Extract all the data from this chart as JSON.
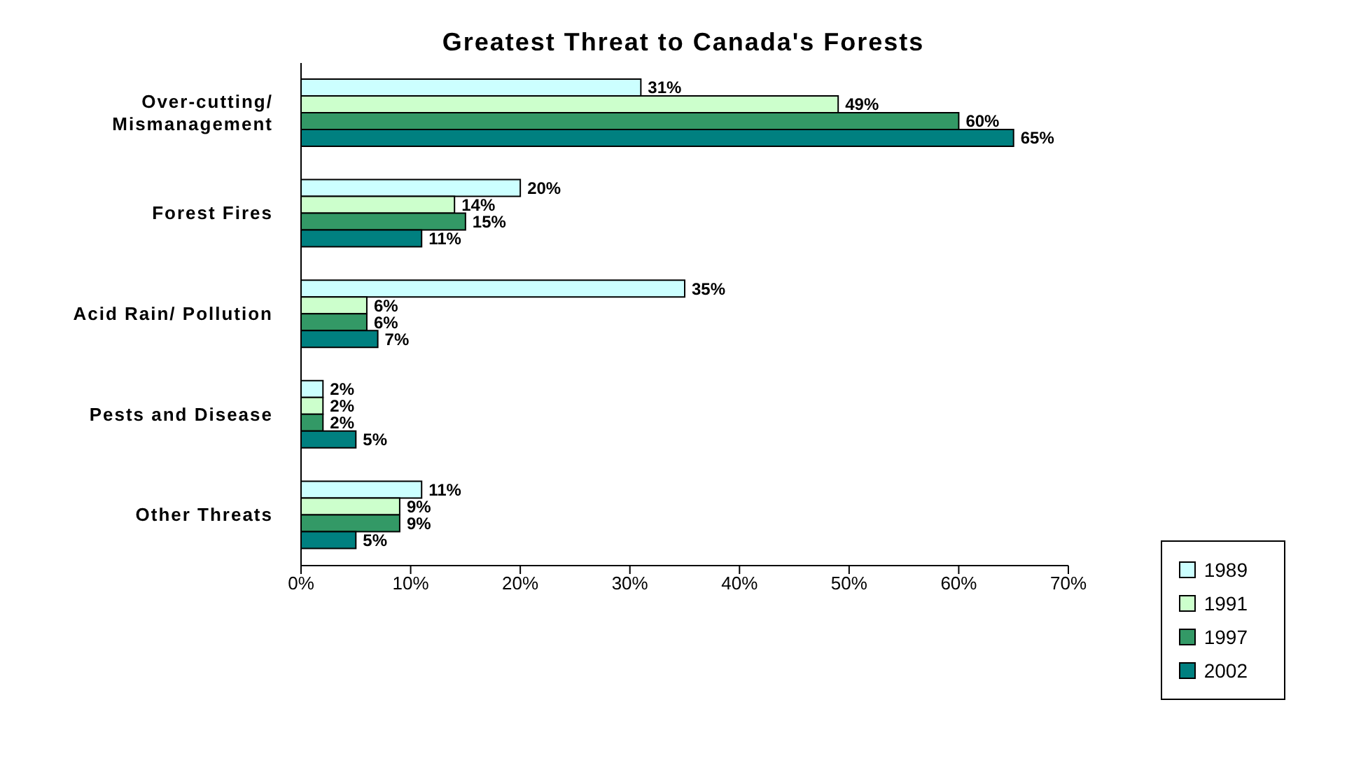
{
  "chart_data": {
    "type": "bar",
    "orientation": "horizontal",
    "title": "Greatest Threat to Canada's Forests",
    "categories": [
      "Over-cutting/\nMismanagement",
      "Forest Fires",
      "Acid Rain/ Pollution",
      "Pests and Disease",
      "Other Threats"
    ],
    "series": [
      {
        "name": "1989",
        "color": "#ccffff",
        "values": [
          31,
          20,
          35,
          2,
          11
        ],
        "value_labels": [
          "31%",
          "20%",
          "35%",
          "2%",
          "11%"
        ]
      },
      {
        "name": "1991",
        "color": "#ccffcc",
        "values": [
          49,
          14,
          6,
          2,
          9
        ],
        "value_labels": [
          "49%",
          "14%",
          "6%",
          "2%",
          "9%"
        ]
      },
      {
        "name": "1997",
        "color": "#339966",
        "values": [
          60,
          15,
          6,
          2,
          9
        ],
        "value_labels": [
          "60%",
          "15%",
          "6%",
          "2%",
          "9%"
        ]
      },
      {
        "name": "2002",
        "color": "#008080",
        "values": [
          65,
          11,
          7,
          5,
          5
        ],
        "value_labels": [
          "65%",
          "11%",
          "7%",
          "5%",
          "5%"
        ]
      }
    ],
    "xlim": [
      0,
      70
    ],
    "xticks": [
      {
        "value": 0,
        "label": "0%"
      },
      {
        "value": 10,
        "label": "10%"
      },
      {
        "value": 20,
        "label": "20%"
      },
      {
        "value": 30,
        "label": "30%"
      },
      {
        "value": 40,
        "label": "40%"
      },
      {
        "value": 50,
        "label": "50%"
      },
      {
        "value": 60,
        "label": "60%"
      },
      {
        "value": 70,
        "label": "70%"
      }
    ],
    "legend": "bottom right",
    "grid": false
  }
}
